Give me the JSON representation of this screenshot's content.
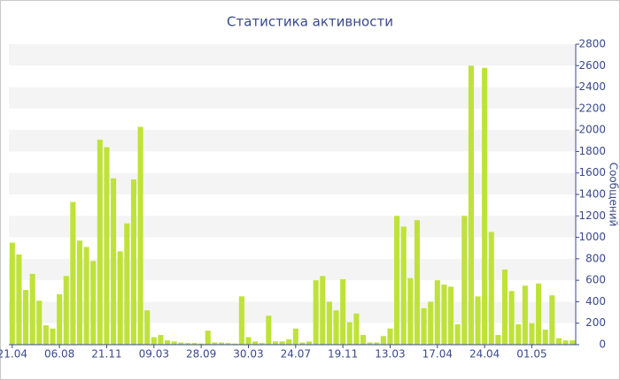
{
  "chart_data": {
    "type": "bar",
    "title": "Статистика активности",
    "y_axis_label": "Сообщений",
    "categories": [
      "21.04",
      null,
      null,
      null,
      null,
      null,
      null,
      "06.08",
      null,
      null,
      null,
      null,
      null,
      null,
      "21.11",
      null,
      null,
      null,
      null,
      null,
      null,
      "09.03",
      null,
      null,
      null,
      null,
      null,
      null,
      "28.09",
      null,
      null,
      null,
      null,
      null,
      null,
      "30.03",
      null,
      null,
      null,
      null,
      null,
      null,
      "24.07",
      null,
      null,
      null,
      null,
      null,
      null,
      "19.11",
      null,
      null,
      null,
      null,
      null,
      null,
      "13.03",
      null,
      null,
      null,
      null,
      null,
      null,
      "17.04",
      null,
      null,
      null,
      null,
      null,
      null,
      "24.04",
      null,
      null,
      null,
      null,
      null,
      null,
      "01.05",
      null,
      null,
      null,
      null,
      null,
      null
    ],
    "values": [
      950,
      840,
      510,
      660,
      410,
      180,
      150,
      470,
      640,
      1330,
      970,
      910,
      780,
      1910,
      1840,
      1550,
      870,
      1130,
      1540,
      2030,
      320,
      70,
      90,
      40,
      30,
      20,
      15,
      15,
      10,
      130,
      20,
      20,
      15,
      10,
      450,
      70,
      30,
      15,
      270,
      30,
      30,
      50,
      150,
      20,
      30,
      600,
      640,
      400,
      320,
      610,
      210,
      290,
      90,
      20,
      20,
      80,
      150,
      1200,
      1100,
      620,
      1160,
      340,
      400,
      600,
      560,
      540,
      190,
      1200,
      2600,
      450,
      2580,
      1050,
      90,
      700,
      500,
      190,
      550,
      200,
      570,
      140,
      460,
      60,
      40,
      40
    ],
    "color": "#bfe23a",
    "ylim": [
      0,
      2800
    ],
    "yticks": [
      0,
      200,
      400,
      600,
      800,
      1000,
      1200,
      1400,
      1600,
      1800,
      2000,
      2200,
      2400,
      2600,
      2800
    ],
    "grid": true,
    "y_axis_side": "right"
  }
}
